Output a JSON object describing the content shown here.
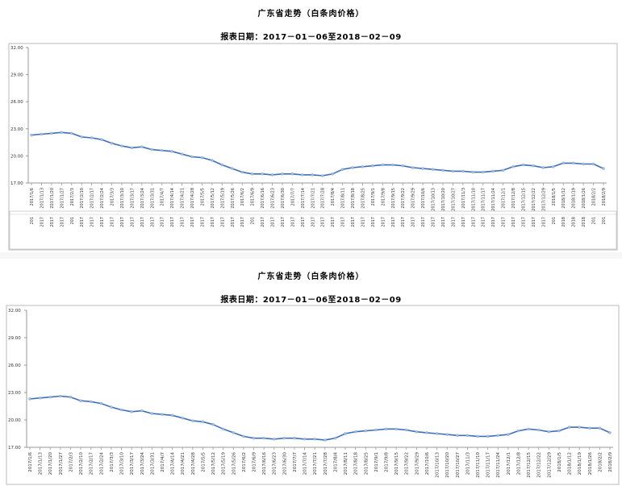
{
  "chart_data": [
    {
      "type": "line",
      "title": "广东省走势（白条肉价格）",
      "subtitle": "报表日期：2017－01－06至2018－02－09",
      "ylim": [
        17,
        32
      ],
      "yticks": [
        "17.00",
        "20.00",
        "23.00",
        "26.00",
        "29.00",
        "32.00"
      ],
      "grid": false,
      "series_color": "#3d6fb6",
      "x": [
        "2017/1/6",
        "2017/1/13",
        "2017/1/20",
        "2017/1/27",
        "2017/2/3",
        "2017/2/10",
        "2017/2/17",
        "2017/2/24",
        "2017/3/3",
        "2017/3/10",
        "2017/3/17",
        "2017/3/24",
        "2017/3/31",
        "2017/4/7",
        "2017/4/14",
        "2017/4/21",
        "2017/4/28",
        "2017/5/5",
        "2017/5/12",
        "2017/5/19",
        "2017/5/26",
        "2017/6/2",
        "2017/6/9",
        "2017/6/16",
        "2017/6/23",
        "2017/6/30",
        "2017/7/7",
        "2017/7/14",
        "2017/7/21",
        "2017/7/28",
        "2017/8/4",
        "2017/8/11",
        "2017/8/18",
        "2017/8/25",
        "2017/9/1",
        "2017/9/8",
        "2017/9/15",
        "2017/9/22",
        "2017/9/29",
        "2017/10/6",
        "2017/10/13",
        "2017/10/20",
        "2017/10/27",
        "2017/11/3",
        "2017/11/10",
        "2017/11/17",
        "2017/11/24",
        "2017/12/1",
        "2017/12/8",
        "2017/12/15",
        "2017/12/22",
        "2017/12/29",
        "2018/1/5",
        "2018/1/12",
        "2018/1/19",
        "2018/1/26",
        "2018/2/2",
        "2018/2/9"
      ],
      "values": [
        22.3,
        22.4,
        22.5,
        22.6,
        22.5,
        22.1,
        22.0,
        21.8,
        21.4,
        21.1,
        20.9,
        21.0,
        20.7,
        20.6,
        20.5,
        20.2,
        19.9,
        19.8,
        19.5,
        19.0,
        18.6,
        18.2,
        18.0,
        18.0,
        17.9,
        18.0,
        18.0,
        17.9,
        17.9,
        17.8,
        18.0,
        18.5,
        18.7,
        18.8,
        18.9,
        19.0,
        19.0,
        18.9,
        18.7,
        18.6,
        18.5,
        18.4,
        18.3,
        18.3,
        18.2,
        18.2,
        18.3,
        18.4,
        18.8,
        19.0,
        18.9,
        18.7,
        18.8,
        19.2,
        19.2,
        19.1,
        19.1,
        18.6
      ],
      "xtick_labels": [
        "2017/1/6",
        "2017/1/13",
        "2017/1/20",
        "2017/1/27",
        "2017/2/3",
        "2017/2/10",
        "2017/2/17",
        "2017/2/24",
        "2017/3/3",
        "2017/3/10",
        "2017/3/17",
        "2017/3/24",
        "2017/3/31",
        "2017/4/7",
        "2017/4/14",
        "2017/4/21",
        "2017/4/28",
        "2017/5/5",
        "2017/5/12",
        "2017/5/19",
        "2017/5/26",
        "2017/6/2",
        "2017/6/9",
        "2017/6/16",
        "2017/6/23",
        "2017/6/30",
        "2017/7/7",
        "2017/7/14",
        "2017/7/21",
        "2017/7/28",
        "2017/8/4",
        "2017/8/11",
        "2017/8/18",
        "2017/8/25",
        "2017/9/1",
        "2017/9/8",
        "2017/9/15",
        "2017/9/22",
        "2017/9/29",
        "2017/10/6",
        "2017/10/13",
        "2017/10/20",
        "2017/10/27",
        "2017/11/3",
        "2017/11/10",
        "2017/11/17",
        "2017/11/24",
        "2017/12/1",
        "2017/12/8",
        "2017/12/15",
        "2017/12/22",
        "2017/12/29",
        "2018/1/5",
        "2018/1/12",
        "2018/1/19",
        "2018/1/26",
        "2018/2/2",
        "2018/2/9"
      ],
      "lower_labels": [
        "201",
        "2017",
        "2017",
        "2017",
        "201",
        "2017",
        "2017",
        "2017",
        "2017",
        "2017",
        "2017",
        "2017",
        "2017",
        "2017",
        "2017",
        "2017",
        "2017",
        "2017",
        "2017",
        "2017",
        "2017",
        "2017",
        "201",
        "2017",
        "2017",
        "2017",
        "2017",
        "2017",
        "2017",
        "2017",
        "2017",
        "2017",
        "2017",
        "2017",
        "2017",
        "2017",
        "2017",
        "2017",
        "2017",
        "2017",
        "2017",
        "2017",
        "2017",
        "2017",
        "2017",
        "2017",
        "2017",
        "2017",
        "2017",
        "2017",
        "2017",
        "2017",
        "201",
        "2018",
        "2018",
        "2018",
        "201",
        "201"
      ]
    },
    {
      "type": "line",
      "title": "广东省走势（白条肉价格）",
      "subtitle": "报表日期：2017－01－06至2018－02－09",
      "ylim": [
        17,
        32
      ],
      "yticks": [
        "17.00",
        "20.00",
        "23.00",
        "26.00",
        "29.00",
        "32.00"
      ],
      "grid": false,
      "series_color": "#3d6fb6",
      "x": [
        "2017/1/6",
        "2017/1/13",
        "2017/1/20",
        "2017/1/27",
        "2017/2/3",
        "2017/2/10",
        "2017/2/17",
        "2017/2/24",
        "2017/3/3",
        "2017/3/10",
        "2017/3/17",
        "2017/3/24",
        "2017/3/31",
        "2017/4/7",
        "2017/4/14",
        "2017/4/21",
        "2017/4/28",
        "2017/5/5",
        "2017/5/12",
        "2017/5/19",
        "2017/5/26",
        "2017/6/2",
        "2017/6/9",
        "2017/6/16",
        "2017/6/23",
        "2017/6/30",
        "2017/7/7",
        "2017/7/14",
        "2017/7/21",
        "2017/7/28",
        "2017/8/4",
        "2017/8/11",
        "2017/8/18",
        "2017/8/25",
        "2017/9/1",
        "2017/9/8",
        "2017/9/15",
        "2017/9/22",
        "2017/9/29",
        "2017/10/6",
        "2017/10/13",
        "2017/10/20",
        "2017/10/27",
        "2017/11/3",
        "2017/11/10",
        "2017/11/17",
        "2017/11/24",
        "2017/12/1",
        "2017/12/8",
        "2017/12/15",
        "2017/12/22",
        "2017/12/29",
        "2018/1/5",
        "2018/1/12",
        "2018/1/19",
        "2018/1/26",
        "2018/2/2",
        "2018/2/9"
      ],
      "values": [
        22.3,
        22.4,
        22.5,
        22.6,
        22.5,
        22.1,
        22.0,
        21.8,
        21.4,
        21.1,
        20.9,
        21.0,
        20.7,
        20.6,
        20.5,
        20.2,
        19.9,
        19.8,
        19.5,
        19.0,
        18.6,
        18.2,
        18.0,
        18.0,
        17.9,
        18.0,
        18.0,
        17.9,
        17.9,
        17.8,
        18.0,
        18.5,
        18.7,
        18.8,
        18.9,
        19.0,
        19.0,
        18.9,
        18.7,
        18.6,
        18.5,
        18.4,
        18.3,
        18.3,
        18.2,
        18.2,
        18.3,
        18.4,
        18.8,
        19.0,
        18.9,
        18.7,
        18.8,
        19.2,
        19.2,
        19.1,
        19.1,
        18.6
      ],
      "xtick_labels": [
        "2017/1/6",
        "2017/1/13",
        "2017/1/20",
        "2017/1/27",
        "2017/2/3",
        "2017/2/10",
        "2017/2/17",
        "2017/2/24",
        "2017/3/3",
        "2017/3/10",
        "2017/3/17",
        "2017/3/24",
        "2017/3/31",
        "2017/4/7",
        "2017/4/14",
        "2017/4/21",
        "2017/4/28",
        "2017/5/5",
        "2017/5/12",
        "2017/5/19",
        "2017/5/26",
        "2017/6/2",
        "2017/6/9",
        "2017/6/16",
        "2017/6/23",
        "2017/6/30",
        "2017/7/7",
        "2017/7/14",
        "2017/7/21",
        "2017/7/28",
        "2017/8/4",
        "2017/8/11",
        "2017/8/18",
        "2017/8/25",
        "2017/9/1",
        "2017/9/8",
        "2017/9/15",
        "2017/9/22",
        "2017/9/29",
        "2017/10/6",
        "2017/10/13",
        "2017/10/20",
        "2017/10/27",
        "2017/11/3",
        "2017/11/10",
        "2017/11/17",
        "2017/11/24",
        "2017/12/1",
        "2017/12/8",
        "2017/12/15",
        "2017/12/22",
        "2017/12/29",
        "2018/1/5",
        "2018/1/12",
        "2018/1/19",
        "2018/1/26",
        "2018/2/2",
        "2018/2/9"
      ]
    }
  ]
}
